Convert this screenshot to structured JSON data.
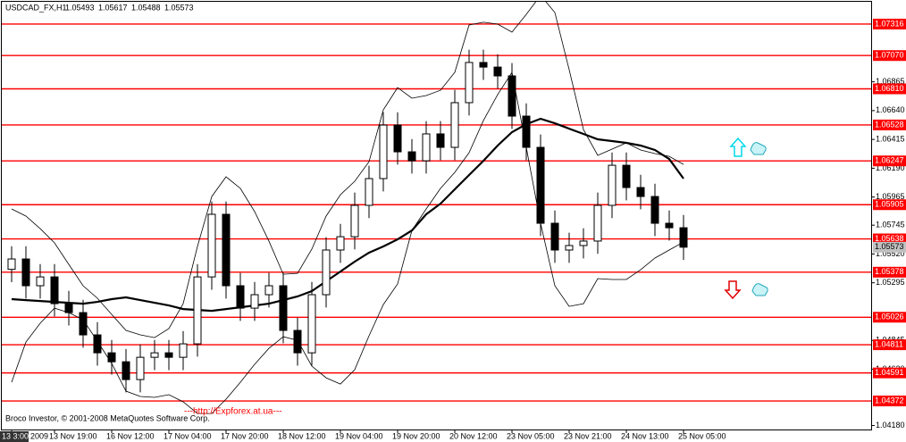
{
  "chart_data": {
    "type": "candlestick",
    "title": "USDCAD_FX,H1",
    "header_ohlc": [
      1.05493,
      1.05617,
      1.05488,
      1.05573
    ],
    "categories": [
      "13 Nov 2009",
      null,
      null,
      "13 Nov 19:00",
      null,
      null,
      null,
      "16 Nov 12:00",
      null,
      null,
      null,
      "17 Nov 04:00",
      null,
      null,
      null,
      "17 Nov 20:00",
      null,
      null,
      null,
      "18 Nov 12:00",
      null,
      null,
      null,
      "19 Nov 04:00",
      null,
      null,
      null,
      "19 Nov 20:00",
      null,
      null,
      null,
      "20 Nov 12:00",
      null,
      null,
      null,
      "23 Nov 05:00",
      null,
      null,
      null,
      "23 Nov 21:00",
      null,
      null,
      null,
      "24 Nov 13:00",
      null,
      null,
      null,
      "25 Nov 05:00"
    ],
    "open": [
      1.054,
      1.05481,
      1.05272,
      1.05341,
      1.05132,
      1.05062,
      1.04888,
      1.04748,
      1.04678,
      1.04539,
      1.04713,
      1.04748,
      1.04713,
      1.04818,
      1.05341,
      1.0583,
      1.05272,
      1.05097,
      1.05202,
      1.05272,
      1.04923,
      1.04748,
      1.05202,
      1.05551,
      1.05655,
      1.059,
      1.06109,
      1.06527,
      1.06318,
      1.06248,
      1.06458,
      1.06353,
      1.06702,
      1.07016,
      1.0698,
      1.06911,
      1.06597,
      1.06353,
      1.0576,
      1.05551,
      1.05586,
      1.05621,
      1.059,
      1.06213,
      1.06039,
      1.05969,
      1.0576,
      1.05725
    ],
    "high": [
      1.05581,
      1.05581,
      1.05441,
      1.05441,
      1.05232,
      1.05162,
      1.04988,
      1.04848,
      1.04778,
      1.04813,
      1.04848,
      1.04848,
      1.04918,
      1.05441,
      1.0593,
      1.0593,
      1.05372,
      1.05302,
      1.05372,
      1.05372,
      1.05023,
      1.05302,
      1.05651,
      1.05755,
      1.06,
      1.06209,
      1.06627,
      1.06627,
      1.06418,
      1.06558,
      1.06558,
      1.06802,
      1.07116,
      1.07116,
      1.0708,
      1.07011,
      1.06697,
      1.06453,
      1.0586,
      1.05686,
      1.05721,
      1.06,
      1.06313,
      1.06313,
      1.06139,
      1.06069,
      1.0586,
      1.05825
    ],
    "low": [
      1.053,
      1.05172,
      1.05172,
      1.05032,
      1.04962,
      1.04788,
      1.04648,
      1.04578,
      1.04439,
      1.04439,
      1.04613,
      1.04613,
      1.04613,
      1.04718,
      1.05241,
      1.05172,
      1.04997,
      1.04997,
      1.05102,
      1.04823,
      1.04648,
      1.04648,
      1.05102,
      1.05451,
      1.05555,
      1.058,
      1.06009,
      1.06218,
      1.06148,
      1.06148,
      1.06253,
      1.06253,
      1.06602,
      1.0688,
      1.06811,
      1.06497,
      1.06253,
      1.0566,
      1.05451,
      1.05451,
      1.05486,
      1.05521,
      1.058,
      1.05939,
      1.05869,
      1.0566,
      1.05625,
      1.05473
    ],
    "close": [
      1.05481,
      1.05272,
      1.05341,
      1.05132,
      1.05062,
      1.04888,
      1.04748,
      1.04678,
      1.04539,
      1.04713,
      1.04748,
      1.04713,
      1.04818,
      1.05341,
      1.0583,
      1.05272,
      1.05097,
      1.05202,
      1.05272,
      1.04923,
      1.04748,
      1.05202,
      1.05551,
      1.05655,
      1.059,
      1.06109,
      1.06527,
      1.06318,
      1.06248,
      1.06458,
      1.06353,
      1.06702,
      1.07016,
      1.0698,
      1.06911,
      1.06597,
      1.06353,
      1.0576,
      1.05551,
      1.05586,
      1.05621,
      1.059,
      1.06213,
      1.06039,
      1.05969,
      1.0576,
      1.05725,
      1.05573
    ],
    "candle_color": "#000000",
    "overlays": [
      {
        "color": "#000000",
        "width": 2.2,
        "values": [
          1.05167,
          1.0516,
          1.05153,
          1.05146,
          1.05139,
          1.05132,
          1.05146,
          1.05167,
          1.05181,
          1.0516,
          1.05139,
          1.05118,
          1.0509,
          1.05083,
          1.05076,
          1.0509,
          1.05104,
          1.05118,
          1.05132,
          1.0516,
          1.05188,
          1.0523,
          1.05307,
          1.05383,
          1.0546,
          1.0553,
          1.05579,
          1.05634,
          1.05704,
          1.0583,
          1.05913,
          1.06025,
          1.06137,
          1.06248,
          1.06367,
          1.06472,
          1.06534,
          1.06576,
          1.06541,
          1.06499,
          1.06458,
          1.06416,
          1.06402,
          1.06388,
          1.06367,
          1.06332,
          1.06262,
          1.06109
        ]
      },
      {
        "color": "#000000",
        "width": 0.8,
        "values": [
          1.05872,
          1.05816,
          1.05718,
          1.05607,
          1.05439,
          1.05272,
          1.05174,
          1.05048,
          1.04923,
          1.04888,
          1.04867,
          1.04937,
          1.05132,
          1.05579,
          1.05969,
          1.06123,
          1.06032,
          1.05851,
          1.0562,
          1.05362,
          1.05369,
          1.05558,
          1.05816,
          1.05983,
          1.06088,
          1.06241,
          1.06646,
          1.0682,
          1.06737,
          1.06758,
          1.06799,
          1.06939,
          1.07309,
          1.0733,
          1.07316,
          1.07253,
          1.07392,
          1.0754,
          1.07406,
          1.0696,
          1.06492,
          1.0629,
          1.06339,
          1.06388,
          1.06332,
          1.06304,
          1.06283,
          1.0622
        ]
      },
      {
        "color": "#000000",
        "width": 0.8,
        "values": [
          1.04518,
          1.04832,
          1.04979,
          1.05097,
          1.05062,
          1.05007,
          1.04839,
          1.04665,
          1.04449,
          1.04407,
          1.044,
          1.04421,
          1.04365,
          1.04274,
          1.04274,
          1.04386,
          1.04518,
          1.04658,
          1.04783,
          1.04874,
          1.04846,
          1.04644,
          1.04553,
          1.04504,
          1.04616,
          1.04881,
          1.05125,
          1.05286,
          1.05704,
          1.05872,
          1.06032,
          1.06158,
          1.06311,
          1.06562,
          1.06765,
          1.06939,
          1.06353,
          1.0576,
          1.05272,
          1.05111,
          1.05132,
          1.05328,
          1.05321,
          1.05321,
          1.05397,
          1.05488,
          1.05551,
          1.05613
        ]
      }
    ],
    "levels": [
      1.07316,
      {
        "value": 1.0707,
        "label": "1.07070"
      },
      {
        "value": 1.0681,
        "label": "1.06810"
      },
      1.06528,
      1.06247,
      1.05905,
      1.05638,
      1.05378,
      1.05026,
      1.04811,
      1.04591,
      1.04372
    ],
    "level_color": "#ff0000",
    "current_price": 1.05573,
    "ylim": [
      1.04142,
      1.07504
    ],
    "yticks": [
      1.06865,
      {
        "value": 1.0664,
        "label": "1.06640"
      },
      1.06415,
      {
        "value": 1.0619,
        "label": "1.06190"
      },
      1.05965,
      1.05745,
      {
        "value": 1.0552,
        "label": "1.05520"
      },
      1.05295,
      1.04845,
      {
        "value": 1.0462,
        "label": "1.04620"
      },
      {
        "value": 1.0418,
        "label": "1.04180"
      }
    ],
    "cursor_time": "13 3:00",
    "copyright": "Broco Investor, © 2001-2008 MetaQuotes Software Corp.",
    "link": "---http://Expforex.at.ua---"
  }
}
